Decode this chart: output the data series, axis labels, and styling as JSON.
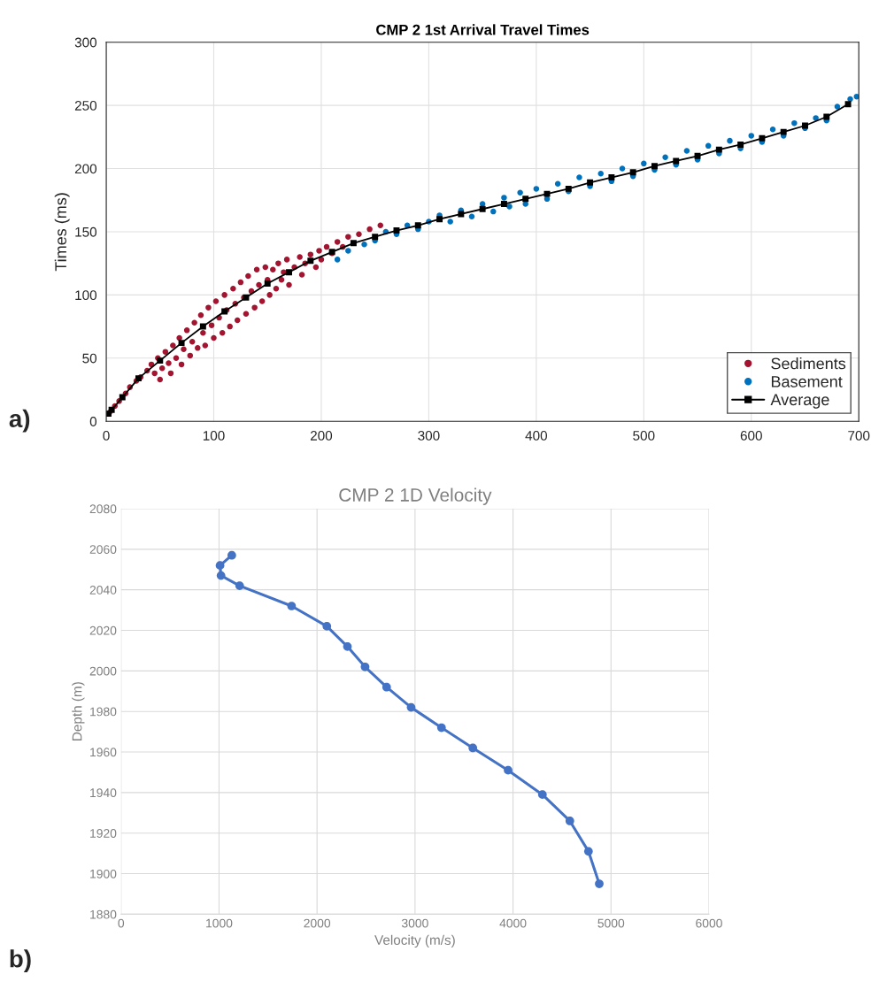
{
  "chart_data": [
    {
      "type": "scatter",
      "title": "CMP 2 1st Arrival Travel Times",
      "ylabel": "Times (ms)",
      "xlim": [
        0,
        700
      ],
      "ylim": [
        0,
        300
      ],
      "xticks": [
        0,
        100,
        200,
        300,
        400,
        500,
        600,
        700
      ],
      "yticks": [
        0,
        50,
        100,
        150,
        200,
        250,
        300
      ],
      "grid": true,
      "legend": "bottom right",
      "annotations": [
        "a)"
      ],
      "series": [
        {
          "name": "Sediments",
          "color": "#a2142f",
          "marker": "circle",
          "x": [
            3,
            8,
            12,
            18,
            22,
            28,
            32,
            38,
            42,
            45,
            48,
            50,
            52,
            55,
            58,
            60,
            62,
            65,
            68,
            70,
            72,
            75,
            78,
            80,
            82,
            85,
            88,
            90,
            92,
            95,
            98,
            100,
            102,
            105,
            108,
            110,
            112,
            115,
            118,
            120,
            122,
            125,
            128,
            130,
            132,
            135,
            138,
            140,
            142,
            145,
            148,
            150,
            152,
            155,
            158,
            160,
            163,
            165,
            168,
            170,
            175,
            180,
            182,
            185,
            190,
            195,
            198,
            200,
            205,
            210,
            215,
            220,
            225,
            235,
            245,
            255
          ],
          "values": [
            7,
            12,
            16,
            22,
            27,
            32,
            35,
            40,
            45,
            38,
            50,
            33,
            42,
            55,
            46,
            38,
            60,
            50,
            66,
            45,
            57,
            72,
            52,
            63,
            78,
            58,
            84,
            70,
            60,
            90,
            76,
            66,
            95,
            82,
            70,
            100,
            88,
            75,
            105,
            93,
            80,
            110,
            98,
            85,
            115,
            103,
            90,
            120,
            108,
            95,
            122,
            112,
            100,
            120,
            105,
            125,
            112,
            118,
            128,
            108,
            122,
            130,
            116,
            125,
            132,
            122,
            135,
            128,
            138,
            133,
            142,
            138,
            146,
            148,
            152,
            155
          ]
        },
        {
          "name": "Basement",
          "color": "#0072bd",
          "marker": "circle",
          "x": [
            215,
            225,
            240,
            250,
            260,
            270,
            280,
            290,
            300,
            310,
            320,
            330,
            340,
            350,
            360,
            370,
            375,
            385,
            390,
            400,
            410,
            420,
            430,
            440,
            450,
            460,
            470,
            480,
            490,
            500,
            510,
            520,
            530,
            540,
            550,
            560,
            570,
            580,
            590,
            600,
            610,
            620,
            630,
            640,
            650,
            660,
            670,
            680,
            692,
            698
          ],
          "values": [
            128,
            135,
            140,
            143,
            150,
            148,
            155,
            152,
            158,
            163,
            158,
            167,
            162,
            172,
            166,
            177,
            170,
            181,
            172,
            184,
            176,
            188,
            182,
            193,
            186,
            196,
            190,
            200,
            194,
            204,
            199,
            209,
            203,
            214,
            207,
            218,
            212,
            222,
            216,
            226,
            221,
            231,
            226,
            236,
            232,
            240,
            238,
            249,
            255,
            257
          ]
        },
        {
          "name": "Average",
          "type": "line",
          "color": "#000000",
          "marker": "square",
          "x": [
            2,
            5,
            15,
            30,
            50,
            70,
            90,
            110,
            130,
            150,
            170,
            190,
            210,
            230,
            250,
            270,
            290,
            310,
            330,
            350,
            370,
            390,
            410,
            430,
            450,
            470,
            490,
            510,
            530,
            550,
            570,
            590,
            610,
            630,
            650,
            670,
            690
          ],
          "values": [
            6,
            9,
            19,
            34,
            48,
            62,
            75,
            87,
            98,
            109,
            118,
            127,
            134,
            141,
            146,
            151,
            155,
            160,
            164,
            168,
            172,
            176,
            180,
            184,
            189,
            193,
            197,
            202,
            206,
            210,
            215,
            219,
            224,
            229,
            234,
            241,
            251
          ]
        }
      ]
    },
    {
      "type": "line",
      "title": "CMP 2 1D Velocity",
      "xlabel": "Velocity (m/s)",
      "ylabel": "Depth (m)",
      "xlim": [
        0,
        6000
      ],
      "ylim": [
        1880,
        2080
      ],
      "xticks": [
        0,
        1000,
        2000,
        3000,
        4000,
        5000,
        6000
      ],
      "yticks": [
        1880,
        1900,
        1920,
        1940,
        1960,
        1980,
        2000,
        2020,
        2040,
        2060,
        2080
      ],
      "grid": true,
      "marker": "circle",
      "annotations": [
        "b)"
      ],
      "series": [
        {
          "color": "#4472c4",
          "x": [
            1130,
            1010,
            1020,
            1210,
            1740,
            2100,
            2310,
            2490,
            2710,
            2960,
            3270,
            3590,
            3950,
            4300,
            4580,
            4770,
            4880
          ],
          "values": [
            2057,
            2052,
            2047,
            2042,
            2032,
            2022,
            2012,
            2002,
            1992,
            1982,
            1972,
            1962,
            1951,
            1939,
            1926,
            1911,
            1895
          ]
        }
      ]
    }
  ]
}
